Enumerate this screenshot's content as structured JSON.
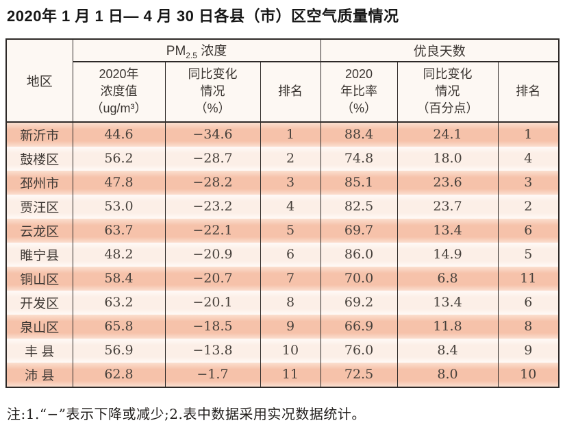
{
  "title": "2020年 1 月 1 日— 4 月 30 日各县（市）区空气质量情况",
  "table": {
    "region_header": "地区",
    "pm_group": {
      "prefix": "PM",
      "sub": "2.5",
      "suffix": " 浓度"
    },
    "good_group_label": "优良天数",
    "sub_headers": {
      "pm_value": "2020年\n浓度值\n（ug/m³）",
      "pm_change": "同比变化\n情况\n（%）",
      "pm_rank": "排名",
      "good_rate": "2020\n年比率\n（%）",
      "good_change": "同比变化\n情况\n（百分点）",
      "good_rank": "排名"
    },
    "rows": [
      [
        "新沂市",
        "44.6",
        "−34.6",
        "1",
        "88.4",
        "24.1",
        "1"
      ],
      [
        "鼓楼区",
        "56.2",
        "−28.7",
        "2",
        "74.8",
        "18.0",
        "4"
      ],
      [
        "邳州市",
        "47.8",
        "−28.2",
        "3",
        "85.1",
        "23.6",
        "3"
      ],
      [
        "贾汪区",
        "53.0",
        "−23.2",
        "4",
        "82.5",
        "23.7",
        "2"
      ],
      [
        "云龙区",
        "63.7",
        "−22.1",
        "5",
        "69.7",
        "13.4",
        "6"
      ],
      [
        "睢宁县",
        "48.2",
        "−20.9",
        "6",
        "86.0",
        "14.9",
        "5"
      ],
      [
        "铜山区",
        "58.4",
        "−20.7",
        "7",
        "70.0",
        "6.8",
        "11"
      ],
      [
        "开发区",
        "63.2",
        "−20.1",
        "8",
        "69.2",
        "13.4",
        "6"
      ],
      [
        "泉山区",
        "65.8",
        "−18.5",
        "9",
        "66.9",
        "11.8",
        "8"
      ],
      [
        "丰 县",
        "56.9",
        "−13.8",
        "10",
        "76.0",
        "8.4",
        "9"
      ],
      [
        "沛 县",
        "62.8",
        "−1.7",
        "11",
        "72.5",
        "8.0",
        "10"
      ]
    ]
  },
  "note": "注:1.“−”表示下降或减少;2.表中数据采用实况数据统计。",
  "colors": {
    "stripe_odd": "#f6c2aa",
    "stripe_even": "#fcefe7",
    "header_bg": "#fdf8f3",
    "border": "#2d2927",
    "text": "#46403b"
  }
}
